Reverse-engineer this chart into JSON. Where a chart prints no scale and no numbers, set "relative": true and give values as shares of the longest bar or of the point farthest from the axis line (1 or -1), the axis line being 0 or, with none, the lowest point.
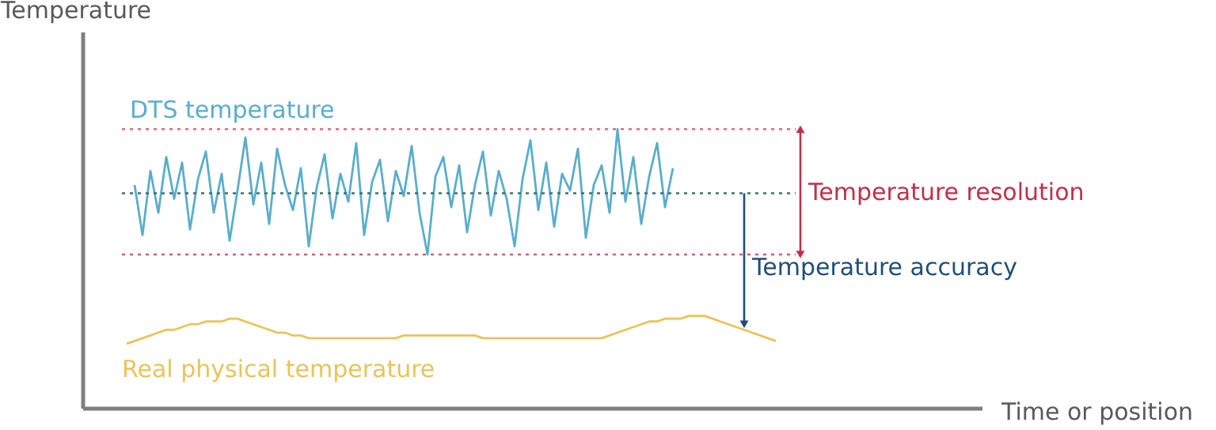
{
  "chart_data": {
    "type": "line",
    "relative": true,
    "xlabel": "Time or position",
    "ylabel": "Temperature",
    "grid": false,
    "categories": [
      null,
      null,
      null,
      null,
      null,
      null,
      null,
      null,
      null,
      null,
      null,
      null,
      null,
      null,
      null,
      null,
      null,
      null,
      null,
      null,
      null,
      null,
      null,
      null,
      null,
      null,
      null,
      null,
      null,
      null,
      null,
      null,
      null,
      null,
      null,
      null,
      null,
      null,
      null,
      null,
      null,
      null,
      null,
      null,
      null,
      null,
      null,
      null,
      null,
      null,
      null,
      null,
      null,
      null,
      null,
      null,
      null,
      null,
      null,
      null,
      null,
      null,
      null,
      null,
      null,
      null,
      null,
      null,
      null,
      null,
      null,
      null,
      null,
      null,
      null,
      null,
      null,
      null,
      null,
      null,
      null,
      null,
      null,
      null,
      null,
      null,
      null,
      null,
      null,
      null,
      null,
      null,
      null,
      null,
      null,
      null,
      null,
      null,
      null,
      null,
      null,
      null,
      null,
      null,
      null,
      null,
      null,
      null,
      null,
      null,
      null,
      null,
      null,
      null
    ],
    "series": [
      {
        "name": "DTS temperature",
        "color": "#5aaecb",
        "values": [
          null,
          null,
          null,
          null,
          null,
          null,
          0.8,
          0.62,
          0.85,
          0.7,
          0.9,
          0.75,
          0.88,
          0.64,
          0.82,
          0.92,
          0.7,
          0.84,
          0.6,
          0.78,
          0.97,
          0.73,
          0.88,
          0.66,
          0.93,
          0.8,
          0.71,
          0.86,
          0.58,
          0.79,
          0.91,
          0.68,
          0.84,
          0.74,
          0.95,
          0.62,
          0.81,
          0.89,
          0.67,
          0.85,
          0.76,
          0.94,
          0.7,
          0.55,
          0.83,
          0.9,
          0.72,
          0.87,
          0.63,
          0.8,
          0.92,
          0.69,
          0.85,
          0.75,
          0.58,
          0.82,
          0.96,
          0.71,
          0.88,
          0.65,
          0.84,
          0.78,
          0.93,
          0.61,
          0.8,
          0.87,
          0.7,
          1.0,
          0.74,
          0.9,
          0.66,
          0.83,
          0.95,
          0.72,
          0.86,
          null,
          null,
          null,
          null,
          null,
          null,
          null,
          null,
          null,
          null,
          null,
          null,
          null,
          null,
          null,
          null,
          null,
          null,
          null,
          null,
          null,
          null,
          null,
          null,
          null,
          null,
          null,
          null,
          null,
          null,
          null,
          null,
          null,
          null,
          null,
          null,
          null,
          null,
          null
        ]
      },
      {
        "name": "Real physical temperature",
        "color": "#e8c45a",
        "values": [
          null,
          null,
          null,
          null,
          null,
          0.23,
          0.24,
          0.25,
          0.26,
          0.27,
          0.28,
          0.28,
          0.29,
          0.3,
          0.3,
          0.31,
          0.31,
          0.31,
          0.32,
          0.32,
          0.31,
          0.3,
          0.29,
          0.28,
          0.27,
          0.27,
          0.26,
          0.26,
          0.25,
          0.25,
          0.25,
          0.25,
          0.25,
          0.25,
          0.25,
          0.25,
          0.25,
          0.25,
          0.25,
          0.25,
          0.26,
          0.26,
          0.26,
          0.26,
          0.26,
          0.26,
          0.26,
          0.26,
          0.26,
          0.26,
          0.25,
          0.25,
          0.25,
          0.25,
          0.25,
          0.25,
          0.25,
          0.25,
          0.25,
          0.25,
          0.25,
          0.25,
          0.25,
          0.25,
          0.25,
          0.25,
          0.26,
          0.27,
          0.28,
          0.29,
          0.3,
          0.31,
          0.31,
          0.32,
          0.32,
          0.32,
          0.33,
          0.33,
          0.33,
          0.32,
          0.31,
          0.3,
          0.29,
          0.28,
          0.27,
          0.26,
          0.25,
          0.24,
          null,
          null,
          null,
          null,
          null,
          null,
          null,
          null,
          null,
          null,
          null,
          null,
          null,
          null,
          null,
          null,
          null,
          null,
          null,
          null,
          null,
          null,
          null,
          null,
          null,
          null
        ]
      }
    ],
    "ref_lines": [
      {
        "axis": "y",
        "value": 1.0,
        "color": "#d06070",
        "line_style": "dotted"
      },
      {
        "axis": "y",
        "value": 0.55,
        "color": "#d06070",
        "line_style": "dotted"
      },
      {
        "axis": "y",
        "value": 0.77,
        "color": "#3c7070",
        "line_style": "dotted"
      }
    ],
    "annotations": [
      "Temperature resolution",
      "Temperature accuracy"
    ]
  }
}
